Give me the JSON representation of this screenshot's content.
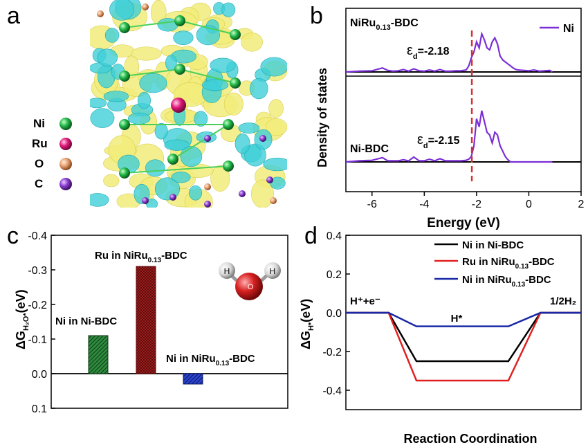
{
  "panel_labels": {
    "a": "a",
    "b": "b",
    "c": "c",
    "d": "d"
  },
  "colors": {
    "ni_atom": "#22b84a",
    "ru_atom": "#e0187a",
    "o_atom": "#e8a070",
    "c_atom": "#8a3ad0",
    "charge_yellow": "#f2ec7a",
    "charge_cyan": "#40d0d8",
    "dos_line": "#7b2fd6",
    "ed_dash": "#d83030",
    "bar_green": "#1d6b2c",
    "bar_red": "#9b1b1b",
    "bar_blue": "#1a2fb0",
    "line_black": "#000000",
    "line_red": "#e02020",
    "line_blue": "#1828a8"
  },
  "panel_a": {
    "legend": [
      {
        "label": "Ni",
        "icon": "green-sphere"
      },
      {
        "label": "Ru",
        "icon": "magenta-sphere"
      },
      {
        "label": "O",
        "icon": "orange-sphere"
      },
      {
        "label": "C",
        "icon": "purple-sphere"
      }
    ]
  },
  "chart_data": [
    {
      "panel": "b",
      "type": "line",
      "xlabel": "Energy (eV)",
      "ylabel": "Density of states",
      "xlim": [
        -7,
        2
      ],
      "xticks": [
        "-6",
        "-4",
        "-2",
        "0",
        "2"
      ],
      "legend": "Ni",
      "subplots": [
        {
          "name_main": "NiRu",
          "name_sub": "0.13",
          "name_tail": "-BDC",
          "ed_symbol": "ε",
          "ed_sub": "d",
          "ed_text": "=-2.18",
          "ed_value": -2.18,
          "x": [
            -7,
            -6.5,
            -6.0,
            -5.6,
            -5.4,
            -5.2,
            -5.0,
            -4.8,
            -4.6,
            -4.4,
            -4.2,
            -4.0,
            -3.8,
            -3.6,
            -3.4,
            -3.2,
            -3.0,
            -2.8,
            -2.6,
            -2.4,
            -2.3,
            -2.2,
            -2.1,
            -2.0,
            -1.9,
            -1.8,
            -1.7,
            -1.6,
            -1.5,
            -1.4,
            -1.3,
            -1.2,
            -1.1,
            -1.0,
            -0.9,
            -0.8,
            -0.7,
            -0.6,
            -0.5,
            -0.4,
            -0.2,
            0,
            0.2,
            0.4,
            0.6,
            0.8,
            0.9
          ],
          "y": [
            0,
            0.02,
            0.03,
            0.1,
            0.04,
            0.02,
            0.03,
            0.06,
            0.02,
            0.08,
            0.03,
            0.02,
            0.05,
            0.02,
            0.06,
            0.02,
            0.02,
            0.03,
            0.03,
            0.05,
            0.15,
            0.35,
            0.5,
            0.75,
            0.6,
            0.95,
            0.8,
            0.6,
            0.55,
            0.75,
            0.85,
            0.7,
            0.4,
            0.3,
            0.25,
            0.2,
            0.15,
            0.1,
            0.06,
            0.05,
            0.04,
            0.03,
            0.05,
            0.02,
            0.03,
            0.04,
            0
          ]
        },
        {
          "name_main": "Ni-BDC",
          "name_sub": "",
          "name_tail": "",
          "ed_symbol": "ε",
          "ed_sub": "d",
          "ed_text": "=-2.15",
          "ed_value": -2.15,
          "x": [
            -7,
            -6.5,
            -6.0,
            -5.6,
            -5.4,
            -5.2,
            -5.0,
            -4.8,
            -4.6,
            -4.4,
            -4.2,
            -4.0,
            -3.8,
            -3.6,
            -3.4,
            -3.2,
            -3.0,
            -2.8,
            -2.6,
            -2.4,
            -2.3,
            -2.2,
            -2.1,
            -2.0,
            -1.9,
            -1.8,
            -1.7,
            -1.6,
            -1.5,
            -1.4,
            -1.3,
            -1.2,
            -1.1,
            -1.0,
            -0.9,
            -0.8,
            -0.7,
            -0.6,
            -0.5,
            -0.4,
            -0.2,
            0,
            0.2,
            0.4,
            0.6,
            0.8,
            0.9
          ],
          "y": [
            0,
            0.02,
            0.03,
            0.08,
            0.02,
            0.02,
            0.02,
            0.04,
            0.02,
            0.09,
            0.02,
            0.02,
            0.05,
            0.02,
            0.06,
            0.02,
            0.02,
            0.02,
            0.02,
            0.03,
            0.05,
            0.1,
            0.3,
            0.8,
            0.65,
            0.95,
            0.75,
            0.55,
            0.5,
            0.35,
            0.55,
            0.5,
            0.3,
            0.2,
            0.1,
            0.04,
            0,
            0,
            0,
            0,
            0,
            0,
            0,
            0,
            0,
            0,
            0
          ]
        }
      ]
    },
    {
      "panel": "c",
      "type": "bar",
      "ylabel": "ΔG_H2O*(eV)",
      "ylim": [
        0.1,
        -0.4
      ],
      "yticks": [
        "-0.4",
        "-0.3",
        "-0.2",
        "-0.1",
        "0.0",
        "0.1"
      ],
      "categories": [
        {
          "main": "Ni in Ni-BDC",
          "sub": "",
          "tail": ""
        },
        {
          "main": "Ru in NiRu",
          "sub": "0.13",
          "tail": "-BDC"
        },
        {
          "main": "Ni in NiRu",
          "sub": "0.13",
          "tail": "-BDC"
        }
      ],
      "values": [
        -0.11,
        -0.31,
        0.03
      ],
      "inset_atoms": [
        "H",
        "O",
        "H"
      ]
    },
    {
      "panel": "d",
      "type": "line",
      "xlabel": "Reaction Coordination",
      "ylabel": "ΔG_H*(eV)",
      "ylim": [
        -0.5,
        0.4
      ],
      "yticks": [
        "0.4",
        "0.2",
        "0.0",
        "-0.2",
        "-0.4"
      ],
      "annotations": {
        "left": "H⁺+e⁻",
        "middle": "H*",
        "right": "1/2H₂"
      },
      "stages": [
        0,
        1,
        2,
        3
      ],
      "series": [
        {
          "name_main": "Ni in Ni-BDC",
          "name_sub": "",
          "name_tail": "",
          "values": [
            0,
            -0.25,
            0
          ]
        },
        {
          "name_main": "Ru in NiRu",
          "name_sub": "0.13",
          "name_tail": "-BDC",
          "values": [
            0,
            -0.35,
            0
          ]
        },
        {
          "name_main": "Ni in NiRu",
          "name_sub": "0.13",
          "name_tail": "-BDC",
          "values": [
            0,
            -0.07,
            0
          ]
        }
      ]
    }
  ]
}
